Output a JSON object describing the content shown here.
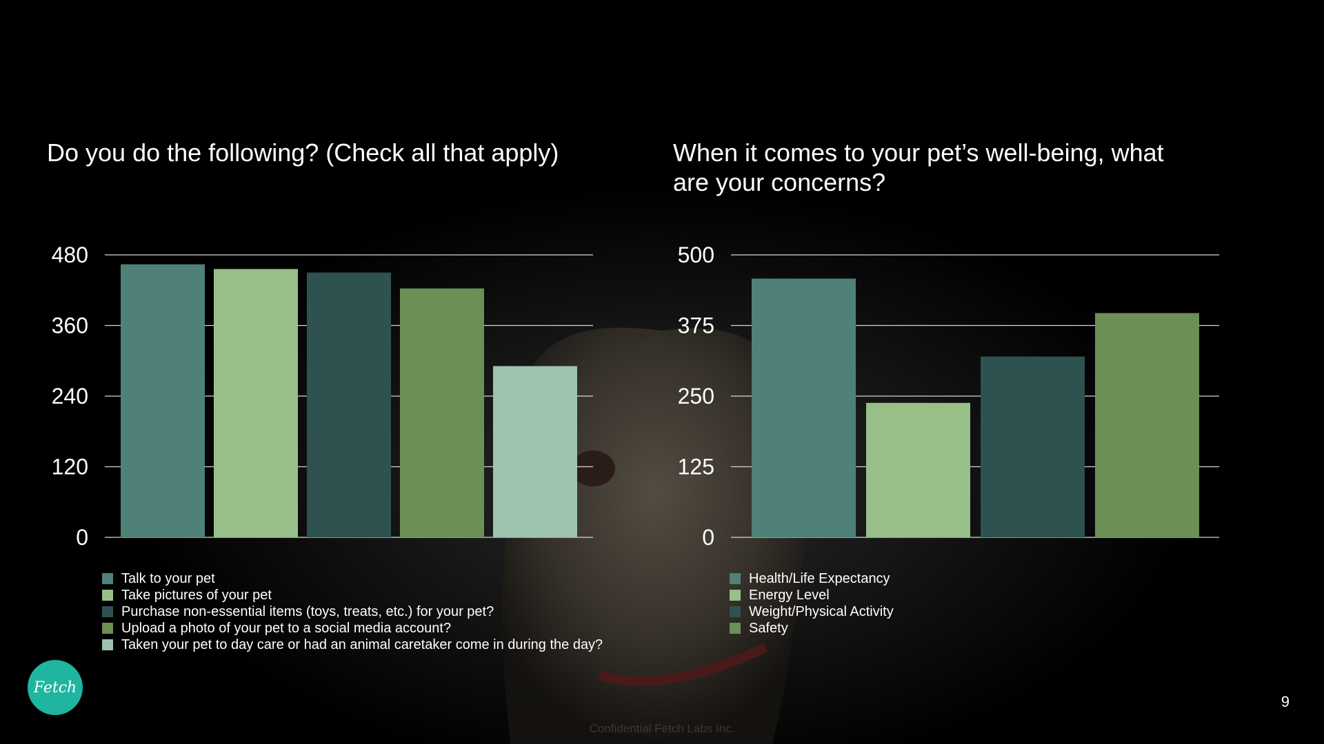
{
  "logo": {
    "text": "Fetch",
    "color": "#1fb5a0",
    "icon": "fetch-logo-icon"
  },
  "page_number": "9",
  "footer": "Confidential Fetch Labs Inc.",
  "chart_data": [
    {
      "type": "bar",
      "title": "Do you do the following? (Check all that apply)",
      "ylim": [
        0,
        480
      ],
      "yticks": [
        "0",
        "120",
        "240",
        "360",
        "480"
      ],
      "grid": true,
      "legend_position": "bottom-left",
      "series": [
        {
          "name": "Talk to your pet",
          "value": 464,
          "color": "#4f8178"
        },
        {
          "name": "Take pictures of your pet",
          "value": 456,
          "color": "#98bf88"
        },
        {
          "name": "Purchase non-essential items (toys, treats, etc.) for your pet?",
          "value": 450,
          "color": "#2e5250"
        },
        {
          "name": "Upload a photo of your pet to a social media account?",
          "value": 423,
          "color": "#6b8f55"
        },
        {
          "name": "Taken your pet to day care or had an animal caretaker come in during the day?",
          "value": 291,
          "color": "#9dc3ae"
        }
      ]
    },
    {
      "type": "bar",
      "title": "When it comes to your pet’s well-being, what are your concerns?",
      "ylim": [
        0,
        500
      ],
      "yticks": [
        "0",
        "125",
        "250",
        "375",
        "500"
      ],
      "grid": true,
      "legend_position": "bottom-left",
      "series": [
        {
          "name": "Health/Life Expectancy",
          "value": 458,
          "color": "#4f8178"
        },
        {
          "name": "Energy Level",
          "value": 238,
          "color": "#98bf88"
        },
        {
          "name": "Weight/Physical Activity",
          "value": 320,
          "color": "#2e5250"
        },
        {
          "name": "Safety",
          "value": 397,
          "color": "#6b8f55"
        }
      ]
    }
  ]
}
